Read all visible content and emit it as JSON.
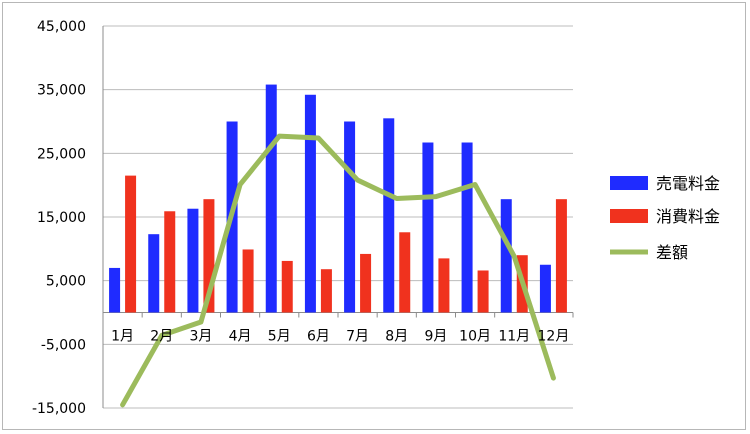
{
  "chart_data": {
    "type": "bar",
    "categories": [
      "1月",
      "2月",
      "3月",
      "4月",
      "5月",
      "6月",
      "7月",
      "8月",
      "9月",
      "10月",
      "11月",
      "12月"
    ],
    "series": [
      {
        "name": "売電料金",
        "kind": "bar",
        "color": "#1f2bff",
        "values": [
          7000,
          12300,
          16300,
          30000,
          35800,
          34200,
          30000,
          30500,
          26700,
          26700,
          17800,
          7500
        ]
      },
      {
        "name": "消費料金",
        "kind": "bar",
        "color": "#f0321e",
        "values": [
          21500,
          15900,
          17800,
          9900,
          8100,
          6800,
          9200,
          12600,
          8500,
          6600,
          9000,
          17800
        ]
      },
      {
        "name": "差額",
        "kind": "line",
        "color": "#9cbb5c",
        "values": [
          -14500,
          -3600,
          -1500,
          20100,
          27700,
          27400,
          20800,
          17900,
          18200,
          20100,
          8800,
          -10300
        ]
      }
    ],
    "yticks": [
      "45,000",
      "35,000",
      "25,000",
      "15,000",
      "5,000",
      "-5,000",
      "-15,000"
    ],
    "ylim": [
      -15000,
      45000
    ],
    "title": "",
    "xlabel": "",
    "ylabel": "",
    "grid": true,
    "legend_position": "right"
  }
}
